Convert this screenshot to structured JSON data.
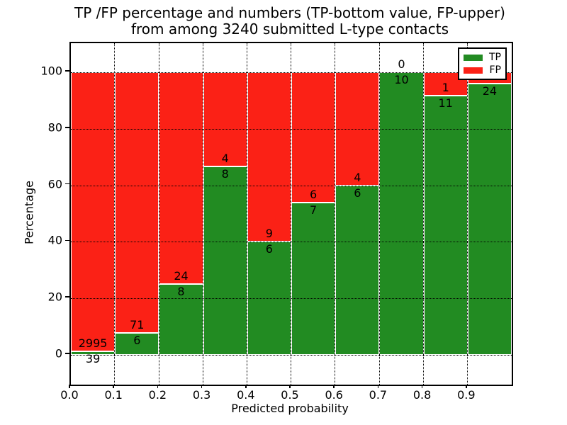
{
  "title": {
    "line1": "TP /FP percentage and numbers (TP-bottom value, FP-upper)",
    "line2": "from among 3240 submitted L-type contacts"
  },
  "axes": {
    "xlabel": "Predicted probability",
    "ylabel": "Percentage",
    "x_tick_labels": [
      "0.0",
      "0.1",
      "0.2",
      "0.3",
      "0.4",
      "0.5",
      "0.6",
      "0.7",
      "0.8",
      "0.9"
    ],
    "y_tick_labels": [
      "0",
      "20",
      "40",
      "60",
      "80",
      "100"
    ],
    "y_tick_values": [
      0,
      20,
      40,
      60,
      80,
      100
    ]
  },
  "legend": {
    "position": "upper right",
    "items": [
      {
        "label": "TP",
        "color": "#228b22"
      },
      {
        "label": "FP",
        "color": "#fb2116"
      }
    ]
  },
  "colors": {
    "tp": "#228b22",
    "fp": "#fb2116",
    "grid": "#000000",
    "background": "#ffffff"
  },
  "chart_data": {
    "type": "bar",
    "stacked": true,
    "normalized_to_percent": true,
    "title": "TP /FP percentage and numbers (TP-bottom value, FP-upper) from among 3240 submitted L-type contacts",
    "xlabel": "Predicted probability",
    "ylabel": "Percentage",
    "xlim": [
      0.0,
      1.0
    ],
    "ylim": [
      -10.5,
      110.3
    ],
    "grid": true,
    "grid_style": "dotted",
    "legend_position": "upper right",
    "bin_edges": [
      0.0,
      0.1,
      0.2,
      0.3,
      0.4,
      0.5,
      0.6,
      0.7,
      0.8,
      0.9,
      1.0
    ],
    "series": [
      {
        "name": "TP",
        "color": "#228b22",
        "counts": [
          39,
          6,
          8,
          8,
          6,
          7,
          6,
          10,
          11,
          24
        ]
      },
      {
        "name": "FP",
        "color": "#fb2116",
        "counts": [
          2995,
          71,
          24,
          4,
          9,
          6,
          4,
          0,
          1,
          null
        ]
      }
    ],
    "tp_percent": [
      1.29,
      7.79,
      25.0,
      66.67,
      40.0,
      53.85,
      60.0,
      100.0,
      91.67,
      96.0
    ],
    "fp_count_labels": [
      "2995",
      "71",
      "24",
      "4",
      "9",
      "6",
      "4",
      "0",
      "1",
      ""
    ],
    "tp_count_labels": [
      "39",
      "6",
      "8",
      "8",
      "6",
      "7",
      "6",
      "10",
      "11",
      "24"
    ]
  }
}
